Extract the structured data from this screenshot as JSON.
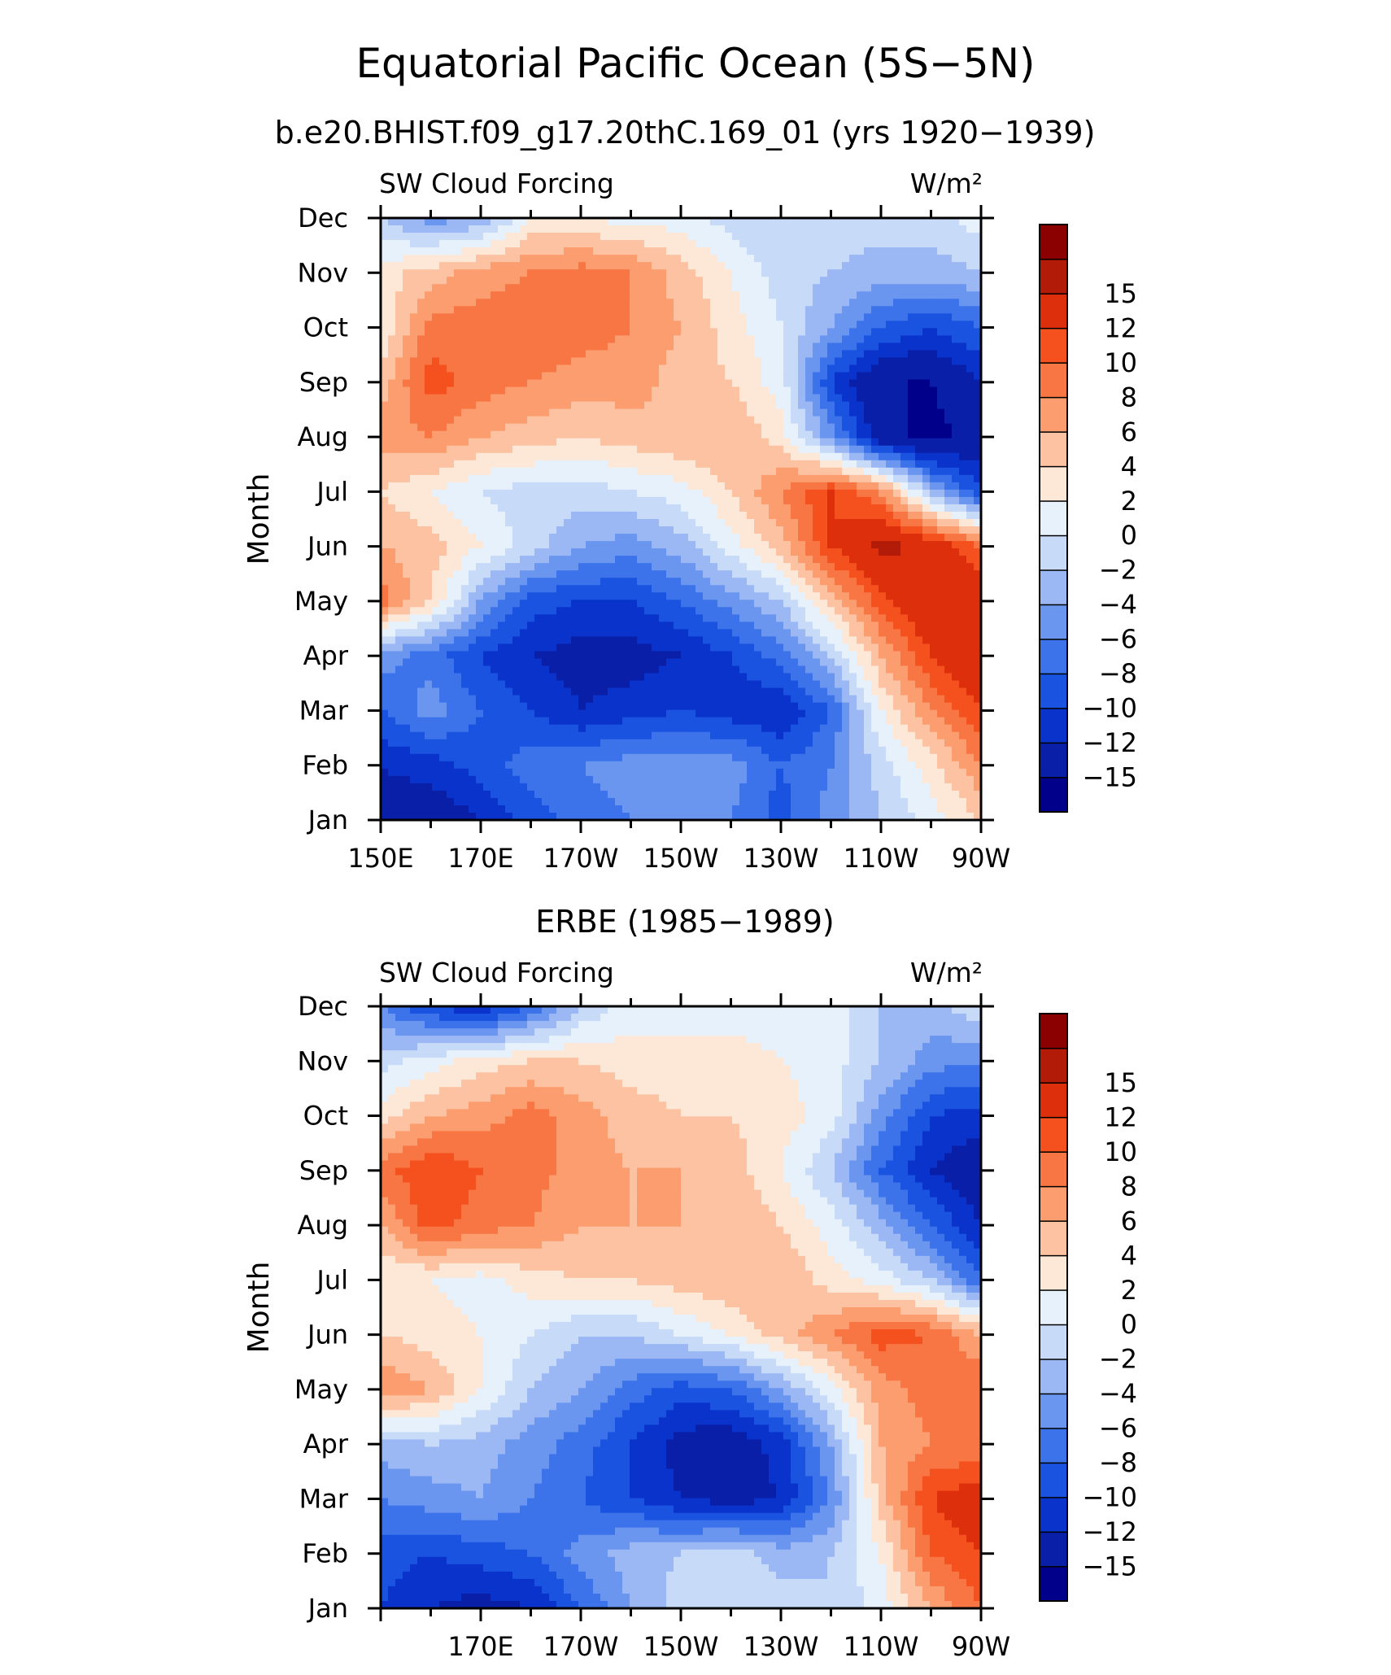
{
  "figure": {
    "title": "Equatorial Pacific Ocean (5S−5N)"
  },
  "chart_data": [
    {
      "type": "heatmap",
      "subtitle": "b.e20.BHIST.f09_g17.20thC.169_01 (yrs 1920−1939)",
      "variable_label": "SW Cloud Forcing",
      "units_label": "W/m²",
      "ylabel": "Month",
      "xlabel": "",
      "y_categories": [
        "Jan",
        "Feb",
        "Mar",
        "Apr",
        "May",
        "Jun",
        "Jul",
        "Aug",
        "Sep",
        "Oct",
        "Nov",
        "Dec"
      ],
      "x_tick_labels": [
        "150E",
        "170E",
        "170W",
        "150W",
        "130W",
        "110W",
        "90W"
      ],
      "xlim_deg_east": [
        150,
        270
      ],
      "colorbar_levels": [
        -15,
        -12,
        -10,
        -8,
        -6,
        -4,
        -2,
        0,
        2,
        4,
        6,
        8,
        10,
        12,
        15
      ],
      "colorbar_tick_labels": [
        "−15",
        "−12",
        "−10",
        "−8",
        "−6",
        "−4",
        "−2",
        "0",
        "2",
        "4",
        "6",
        "8",
        "10",
        "12",
        "15"
      ],
      "x_lon_deg_east": [
        150,
        160,
        170,
        180,
        190,
        200,
        210,
        220,
        230,
        240,
        250,
        260,
        270
      ],
      "values_by_month": [
        [
          -13,
          -14,
          -12,
          -9,
          -7,
          -6,
          -5,
          -6,
          -9,
          -5,
          -2,
          1,
          4
        ],
        [
          -12,
          -11,
          -9,
          -7,
          -6,
          -5,
          -5,
          -5,
          -8,
          -6,
          -1,
          3,
          8
        ],
        [
          -8,
          -5,
          -8,
          -10,
          -12,
          -11,
          -10,
          -11,
          -12,
          -8,
          2,
          8,
          12
        ],
        [
          -5,
          -7,
          -10,
          -12,
          -13,
          -13,
          -12,
          -10,
          -7,
          -2,
          6,
          12,
          15
        ],
        [
          9,
          4,
          -4,
          -9,
          -10,
          -10,
          -8,
          -5,
          -2,
          5,
          11,
          15,
          14
        ],
        [
          6,
          5,
          2,
          -1,
          -4,
          -5,
          -3,
          1,
          5,
          12,
          16,
          14,
          10
        ],
        [
          4,
          2,
          0,
          -1,
          -1,
          0,
          1,
          4,
          8,
          12,
          8,
          -3,
          -10
        ],
        [
          7,
          8,
          6,
          5,
          4,
          5,
          6,
          6,
          3,
          -5,
          -14,
          -16,
          -14
        ],
        [
          5,
          11,
          9,
          8,
          7,
          7,
          5,
          4,
          1,
          -10,
          -15,
          -15,
          -12
        ],
        [
          2,
          9,
          9,
          10,
          9,
          8,
          6,
          3,
          0,
          -4,
          -8,
          -10,
          -8
        ],
        [
          3,
          5,
          7,
          8,
          9,
          8,
          5,
          2,
          -1,
          -2,
          -3,
          -3,
          -2
        ],
        [
          -2,
          -5,
          -4,
          2,
          2,
          1,
          1,
          -1,
          -2,
          -1,
          -1,
          -1,
          1
        ]
      ]
    },
    {
      "type": "heatmap",
      "subtitle": "ERBE (1985−1989)",
      "variable_label": "SW Cloud Forcing",
      "units_label": "W/m²",
      "ylabel": "Month",
      "xlabel": "",
      "y_categories": [
        "Jan",
        "Feb",
        "Mar",
        "Apr",
        "May",
        "Jun",
        "Jul",
        "Aug",
        "Sep",
        "Oct",
        "Nov",
        "Dec"
      ],
      "x_tick_labels": [
        "170E",
        "170W",
        "150W",
        "130W",
        "110W",
        "90W"
      ],
      "xlim_deg_east": [
        150,
        270
      ],
      "colorbar_levels": [
        -15,
        -12,
        -10,
        -8,
        -6,
        -4,
        -2,
        0,
        2,
        4,
        6,
        8,
        10,
        12,
        15
      ],
      "colorbar_tick_labels": [
        "−15",
        "−12",
        "−10",
        "−8",
        "−6",
        "−4",
        "−2",
        "0",
        "2",
        "4",
        "6",
        "8",
        "10",
        "12",
        "15"
      ],
      "x_lon_deg_east": [
        150,
        160,
        170,
        180,
        190,
        200,
        210,
        220,
        230,
        240,
        250,
        260,
        270
      ],
      "values_by_month": [
        [
          -10,
          -12,
          -13,
          -12,
          -8,
          -4,
          -1,
          0,
          -1,
          -2,
          1,
          6,
          10
        ],
        [
          -9,
          -10,
          -9,
          -8,
          -5,
          -3,
          -2,
          -1,
          -3,
          -2,
          2,
          10,
          12
        ],
        [
          -6,
          -5,
          -4,
          -6,
          -8,
          -10,
          -12,
          -13,
          -12,
          -6,
          5,
          12,
          14
        ],
        [
          -3,
          -2,
          -3,
          -5,
          -7,
          -10,
          -13,
          -14,
          -11,
          -4,
          6,
          8,
          8
        ],
        [
          8,
          6,
          2,
          -2,
          -4,
          -7,
          -9,
          -8,
          -4,
          1,
          7,
          9,
          10
        ],
        [
          4,
          3,
          2,
          0,
          -2,
          -2,
          0,
          2,
          5,
          8,
          11,
          10,
          6
        ],
        [
          2,
          2,
          1,
          3,
          4,
          4,
          5,
          6,
          6,
          3,
          1,
          -2,
          -8
        ],
        [
          6,
          11,
          9,
          8,
          6,
          6,
          6,
          6,
          4,
          1,
          -3,
          -8,
          -12
        ],
        [
          9,
          12,
          10,
          9,
          7,
          6,
          6,
          5,
          2,
          -2,
          -8,
          -12,
          -14
        ],
        [
          3,
          6,
          7,
          9,
          7,
          5,
          4,
          4,
          3,
          1,
          -5,
          -10,
          -11
        ],
        [
          -1,
          1,
          3,
          4,
          4,
          3,
          3,
          3,
          2,
          1,
          -2,
          -5,
          -6
        ],
        [
          -6,
          -10,
          -12,
          -8,
          -2,
          1,
          1,
          1,
          1,
          1,
          -2,
          -3,
          0
        ]
      ]
    }
  ],
  "colors": {
    "palette": [
      "#00008b",
      "#0a1fa8",
      "#0a33cc",
      "#1a53e0",
      "#3d73ea",
      "#6b96f0",
      "#9bb8f5",
      "#c7daf8",
      "#e6f1fb",
      "#fde8d8",
      "#fcc2a2",
      "#fb9d6e",
      "#f87644",
      "#f4511e",
      "#dd2f0c",
      "#b31b09",
      "#8b0000"
    ]
  }
}
